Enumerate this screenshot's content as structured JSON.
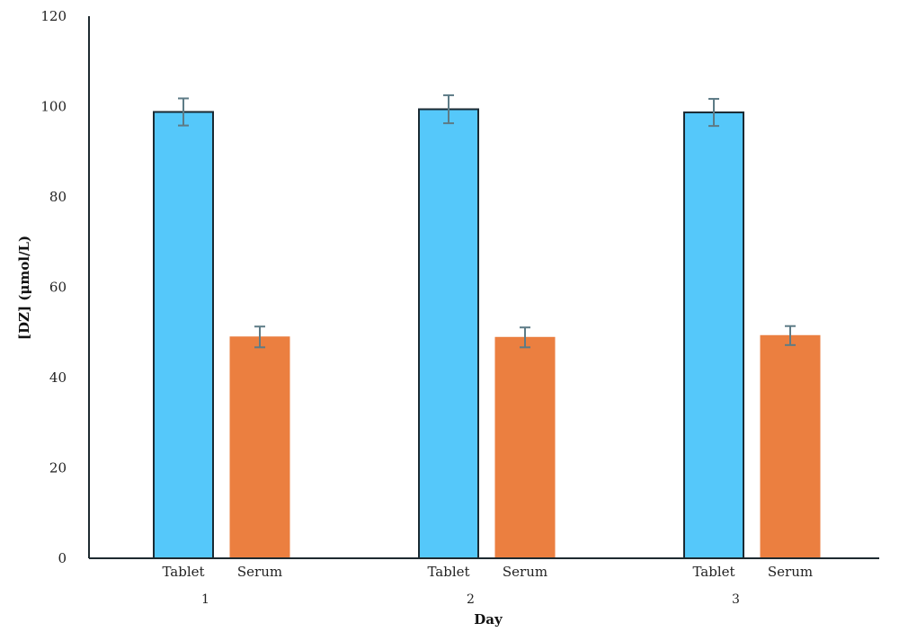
{
  "chart_data": {
    "type": "bar",
    "title": "",
    "xlabel": "Day",
    "ylabel": "[DZ] (μmol/L)",
    "ylim": [
      0,
      120
    ],
    "yticks": [
      0,
      20,
      40,
      60,
      80,
      100,
      120
    ],
    "grid": false,
    "legend": "none",
    "groups": [
      "1",
      "2",
      "3"
    ],
    "categories_per_group": [
      "Tablet",
      "Serum"
    ],
    "series": [
      {
        "name": "Tablet",
        "color": "#55c8fa",
        "edge_color": "#1a2a33",
        "values": [
          98.8,
          99.4,
          98.7
        ],
        "errors": [
          3.0,
          3.1,
          3.0
        ]
      },
      {
        "name": "Serum",
        "color": "#eb7f40",
        "edge_color": "#eb7f40",
        "values": [
          49.0,
          48.9,
          49.3
        ],
        "errors": [
          2.3,
          2.2,
          2.1
        ]
      }
    ],
    "error_bar_color": "#5d7b86"
  }
}
